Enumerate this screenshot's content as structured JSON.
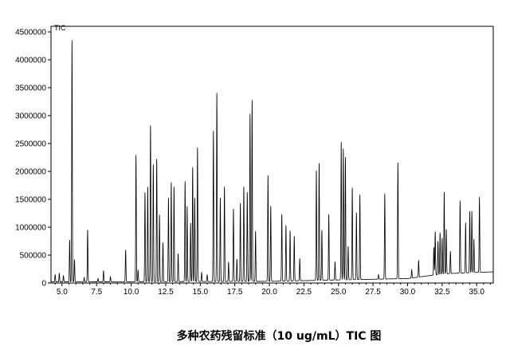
{
  "chart_data": {
    "type": "line",
    "title": "多种农药残留标准（10 ug/mL）TIC 图",
    "trace_label": "TIC",
    "xlabel": "",
    "ylabel": "",
    "xlim": [
      4.2,
      36.2
    ],
    "ylim": [
      0,
      4600000
    ],
    "x_ticks": [
      5.0,
      7.5,
      10.0,
      12.5,
      15.0,
      17.5,
      20.0,
      22.5,
      25.0,
      27.5,
      30.0,
      32.5,
      35.0
    ],
    "x_tick_labels": [
      "5.0",
      "7.5",
      "10.0",
      "12.5",
      "15.0",
      "17.5",
      "20.0",
      "22.5",
      "25.0",
      "27.5",
      "30.0",
      "32.5",
      "35.0"
    ],
    "y_ticks": [
      0,
      500000,
      1000000,
      1500000,
      2000000,
      2500000,
      3000000,
      3500000,
      4000000,
      4500000
    ],
    "y_tick_labels": [
      "0",
      "500000",
      "1000000",
      "1500000",
      "2000000",
      "2500000",
      "3000000",
      "3500000",
      "4000000",
      "4500000"
    ],
    "grid": false,
    "baseline": [
      [
        4.2,
        20000
      ],
      [
        20.0,
        30000
      ],
      [
        30.0,
        80000
      ],
      [
        31.5,
        130000
      ],
      [
        33.0,
        170000
      ],
      [
        35.0,
        190000
      ],
      [
        36.2,
        200000
      ]
    ],
    "peaks": [
      {
        "rt": 4.5,
        "height": 130000
      },
      {
        "rt": 4.8,
        "height": 150000
      },
      {
        "rt": 5.1,
        "height": 110000
      },
      {
        "rt": 5.55,
        "height": 750000
      },
      {
        "rt": 5.72,
        "height": 4330000
      },
      {
        "rt": 5.9,
        "height": 400000
      },
      {
        "rt": 6.6,
        "height": 80000
      },
      {
        "rt": 6.85,
        "height": 930000
      },
      {
        "rt": 7.6,
        "height": 60000
      },
      {
        "rt": 8.0,
        "height": 200000
      },
      {
        "rt": 8.5,
        "height": 90000
      },
      {
        "rt": 9.6,
        "height": 570000
      },
      {
        "rt": 10.35,
        "height": 2270000
      },
      {
        "rt": 10.5,
        "height": 210000
      },
      {
        "rt": 11.0,
        "height": 1600000
      },
      {
        "rt": 11.2,
        "height": 1700000
      },
      {
        "rt": 11.4,
        "height": 2800000
      },
      {
        "rt": 11.6,
        "height": 2100000
      },
      {
        "rt": 11.85,
        "height": 2200000
      },
      {
        "rt": 12.05,
        "height": 1200000
      },
      {
        "rt": 12.3,
        "height": 700000
      },
      {
        "rt": 12.7,
        "height": 1500000
      },
      {
        "rt": 12.9,
        "height": 1780000
      },
      {
        "rt": 13.1,
        "height": 1700000
      },
      {
        "rt": 13.4,
        "height": 500000
      },
      {
        "rt": 13.9,
        "height": 1800000
      },
      {
        "rt": 14.05,
        "height": 1350000
      },
      {
        "rt": 14.3,
        "height": 1050000
      },
      {
        "rt": 14.45,
        "height": 2050000
      },
      {
        "rt": 14.6,
        "height": 1500000
      },
      {
        "rt": 14.8,
        "height": 2400000
      },
      {
        "rt": 15.1,
        "height": 160000
      },
      {
        "rt": 15.5,
        "height": 120000
      },
      {
        "rt": 15.95,
        "height": 2700000
      },
      {
        "rt": 16.2,
        "height": 3380000
      },
      {
        "rt": 16.45,
        "height": 1500000
      },
      {
        "rt": 16.75,
        "height": 1700000
      },
      {
        "rt": 17.05,
        "height": 350000
      },
      {
        "rt": 17.4,
        "height": 1300000
      },
      {
        "rt": 17.65,
        "height": 400000
      },
      {
        "rt": 17.9,
        "height": 1400000
      },
      {
        "rt": 18.15,
        "height": 1700000
      },
      {
        "rt": 18.4,
        "height": 1600000
      },
      {
        "rt": 18.6,
        "height": 3000000
      },
      {
        "rt": 18.75,
        "height": 3250000
      },
      {
        "rt": 19.0,
        "height": 900000
      },
      {
        "rt": 19.9,
        "height": 1900000
      },
      {
        "rt": 20.1,
        "height": 1350000
      },
      {
        "rt": 20.9,
        "height": 1200000
      },
      {
        "rt": 21.2,
        "height": 1000000
      },
      {
        "rt": 21.5,
        "height": 900000
      },
      {
        "rt": 21.8,
        "height": 800000
      },
      {
        "rt": 22.2,
        "height": 400000
      },
      {
        "rt": 23.4,
        "height": 1970000
      },
      {
        "rt": 23.6,
        "height": 2100000
      },
      {
        "rt": 23.8,
        "height": 900000
      },
      {
        "rt": 24.3,
        "height": 1180000
      },
      {
        "rt": 24.75,
        "height": 330000
      },
      {
        "rt": 25.2,
        "height": 2470000
      },
      {
        "rt": 25.35,
        "height": 2350000
      },
      {
        "rt": 25.5,
        "height": 2200000
      },
      {
        "rt": 25.7,
        "height": 600000
      },
      {
        "rt": 26.0,
        "height": 1650000
      },
      {
        "rt": 26.3,
        "height": 1200000
      },
      {
        "rt": 26.55,
        "height": 1520000
      },
      {
        "rt": 27.9,
        "height": 80000
      },
      {
        "rt": 28.35,
        "height": 1530000
      },
      {
        "rt": 29.3,
        "height": 2080000
      },
      {
        "rt": 30.3,
        "height": 150000
      },
      {
        "rt": 30.8,
        "height": 300000
      },
      {
        "rt": 31.9,
        "height": 500000
      },
      {
        "rt": 32.0,
        "height": 780000
      },
      {
        "rt": 32.2,
        "height": 600000
      },
      {
        "rt": 32.35,
        "height": 750000
      },
      {
        "rt": 32.5,
        "height": 650000
      },
      {
        "rt": 32.65,
        "height": 1470000
      },
      {
        "rt": 32.8,
        "height": 800000
      },
      {
        "rt": 33.1,
        "height": 400000
      },
      {
        "rt": 33.8,
        "height": 1300000
      },
      {
        "rt": 34.2,
        "height": 900000
      },
      {
        "rt": 34.5,
        "height": 1100000
      },
      {
        "rt": 34.65,
        "height": 1100000
      },
      {
        "rt": 34.8,
        "height": 600000
      },
      {
        "rt": 35.2,
        "height": 1350000
      }
    ]
  }
}
